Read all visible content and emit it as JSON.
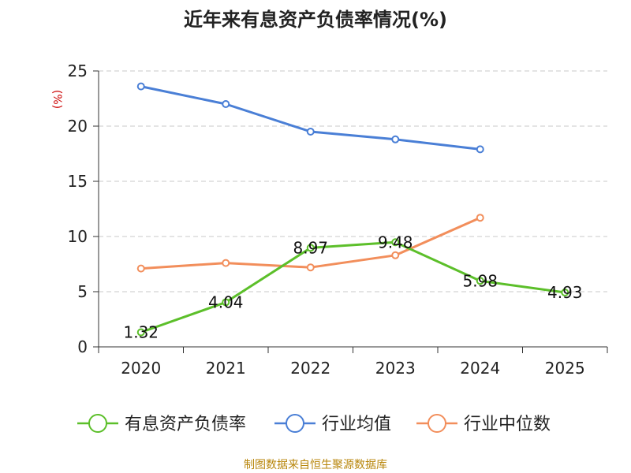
{
  "chart_data": {
    "type": "line",
    "title": "近年来有息资产负债率情况(%)",
    "unit_label": "(%)",
    "categories": [
      "2020",
      "2021",
      "2022",
      "2023",
      "2024",
      "2025"
    ],
    "ylim": [
      0,
      25
    ],
    "yticks": [
      "0",
      "5",
      "10",
      "15",
      "20",
      "25"
    ],
    "grid": true,
    "legend_position": "bottom",
    "series": [
      {
        "name": "有息资产负债率",
        "color": "#5cbf2a",
        "values": [
          1.32,
          4.04,
          8.97,
          9.48,
          5.98,
          4.93
        ],
        "labels": [
          "1.32",
          "4.04",
          "8.97",
          "9.48",
          "5.98",
          "4.93"
        ]
      },
      {
        "name": "行业均值",
        "color": "#4a7fd6",
        "values": [
          23.6,
          22.0,
          19.5,
          18.8,
          17.9,
          null
        ]
      },
      {
        "name": "行业中位数",
        "color": "#f28e5b",
        "values": [
          7.1,
          7.6,
          7.2,
          8.3,
          11.7,
          null
        ]
      }
    ]
  },
  "source": "制图数据来自恒生聚源数据库"
}
